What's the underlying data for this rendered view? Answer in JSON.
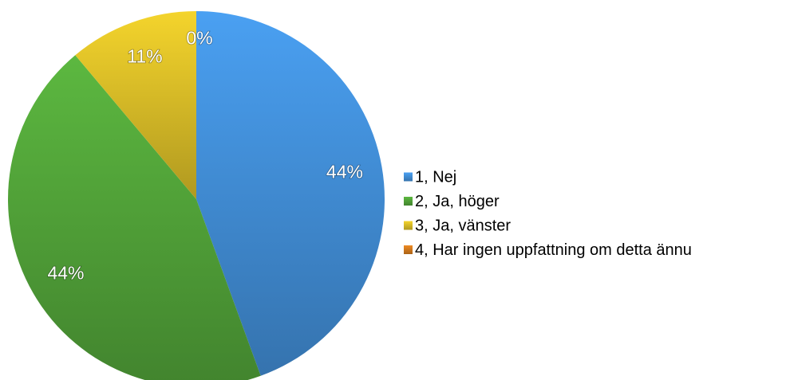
{
  "chart_data": {
    "type": "pie",
    "categories": [
      "1, Nej",
      "2, Ja, höger",
      "3, Ja, vänster",
      "4, Har ingen uppfattning om detta ännu"
    ],
    "values": [
      44,
      44,
      11,
      0
    ],
    "value_labels": [
      "44%",
      "44%",
      "11%",
      "0%"
    ],
    "colors": [
      "#4aa0f2",
      "#5cb840",
      "#f4d42c",
      "#ee8a22"
    ],
    "legend": "right"
  }
}
